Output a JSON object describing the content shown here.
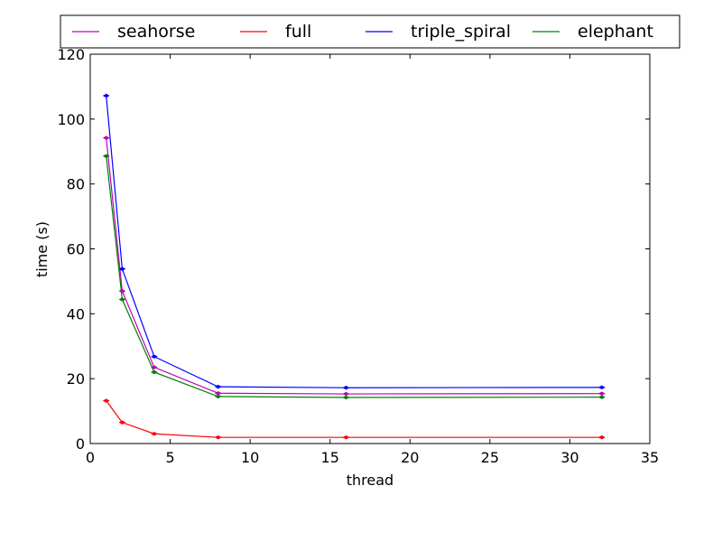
{
  "chart_data": {
    "type": "line",
    "title": "",
    "xlabel": "thread",
    "ylabel": "time (s)",
    "xlim": [
      0,
      35
    ],
    "ylim": [
      0,
      120
    ],
    "xticks": [
      0,
      5,
      10,
      15,
      20,
      25,
      30,
      35
    ],
    "yticks": [
      0,
      20,
      40,
      60,
      80,
      100,
      120
    ],
    "grid": false,
    "legend_position": "top",
    "x": [
      1,
      2,
      4,
      8,
      16,
      32
    ],
    "series": [
      {
        "name": "seahorse",
        "color": "#bf00bf",
        "values": [
          94.2,
          47.0,
          23.5,
          15.5,
          15.3,
          15.4
        ]
      },
      {
        "name": "full",
        "color": "#ff0000",
        "values": [
          13.2,
          6.5,
          3.0,
          1.9,
          1.9,
          1.9
        ]
      },
      {
        "name": "triple_spiral",
        "color": "#0000ff",
        "values": [
          107.2,
          53.8,
          26.8,
          17.5,
          17.2,
          17.3
        ]
      },
      {
        "name": "elephant",
        "color": "#008000",
        "values": [
          88.6,
          44.4,
          22.0,
          14.5,
          14.2,
          14.3
        ]
      }
    ]
  }
}
